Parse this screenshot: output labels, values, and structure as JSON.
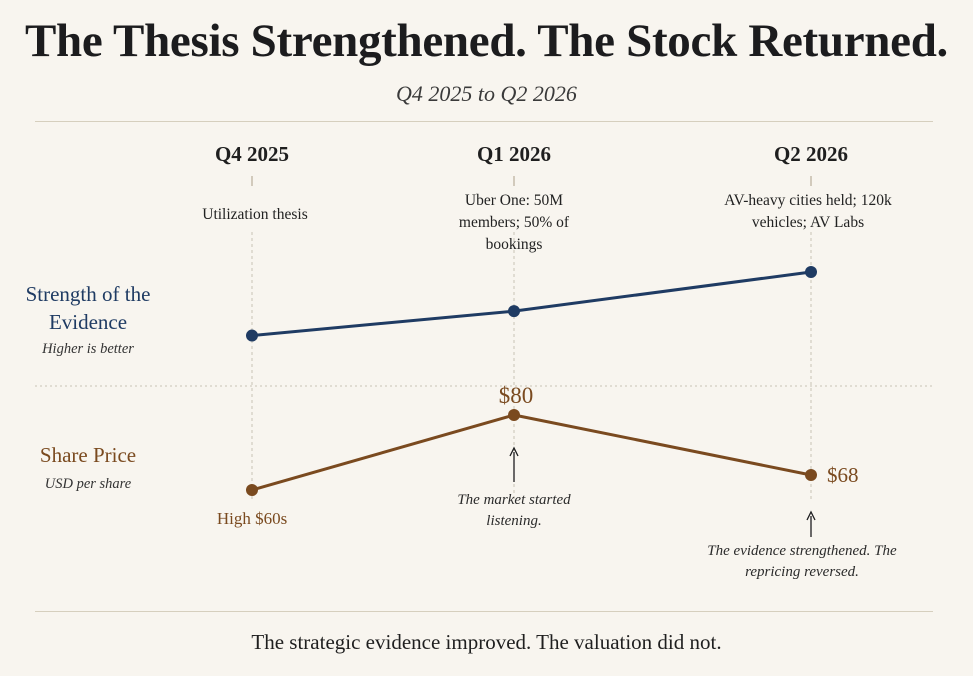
{
  "title": "The Thesis Strengthened. The Stock Returned.",
  "subtitle": "Q4 2025 to Q2 2026",
  "colors": {
    "background": "#f8f5ef",
    "evidence": "#1f3b63",
    "price": "#7a4a1f",
    "rule": "#d6cfbe",
    "guide": "#c9c2b4"
  },
  "periods": [
    "Q4 2025",
    "Q1 2026",
    "Q2 2026"
  ],
  "events": [
    "Utilization thesis",
    "Uber One: 50M members; 50% of bookings",
    "AV-heavy cities held; 120k vehicles; AV Labs"
  ],
  "rows": {
    "evidence": {
      "label": "Strength of the Evidence",
      "sublabel": "Higher is better"
    },
    "price": {
      "label": "Share Price",
      "sublabel": "USD per share"
    }
  },
  "annotations": {
    "q1": "The market started listening.",
    "q2": "The evidence strengthened. The repricing reversed."
  },
  "footer": "The strategic evidence improved. The valuation did not.",
  "chart_data": [
    {
      "type": "line",
      "title": "Strength of the Evidence",
      "categories": [
        "Q4 2025",
        "Q1 2026",
        "Q2 2026"
      ],
      "values": [
        1,
        2,
        3.6
      ],
      "ylim": [
        0,
        4.5
      ],
      "data_labels": [
        "",
        "",
        ""
      ]
    },
    {
      "type": "line",
      "title": "Share Price",
      "categories": [
        "Q4 2025",
        "Q1 2026",
        "Q2 2026"
      ],
      "values": [
        65,
        80,
        68
      ],
      "ylim": [
        50,
        90
      ],
      "data_labels": [
        "High $60s",
        "$80",
        "$68"
      ]
    }
  ]
}
